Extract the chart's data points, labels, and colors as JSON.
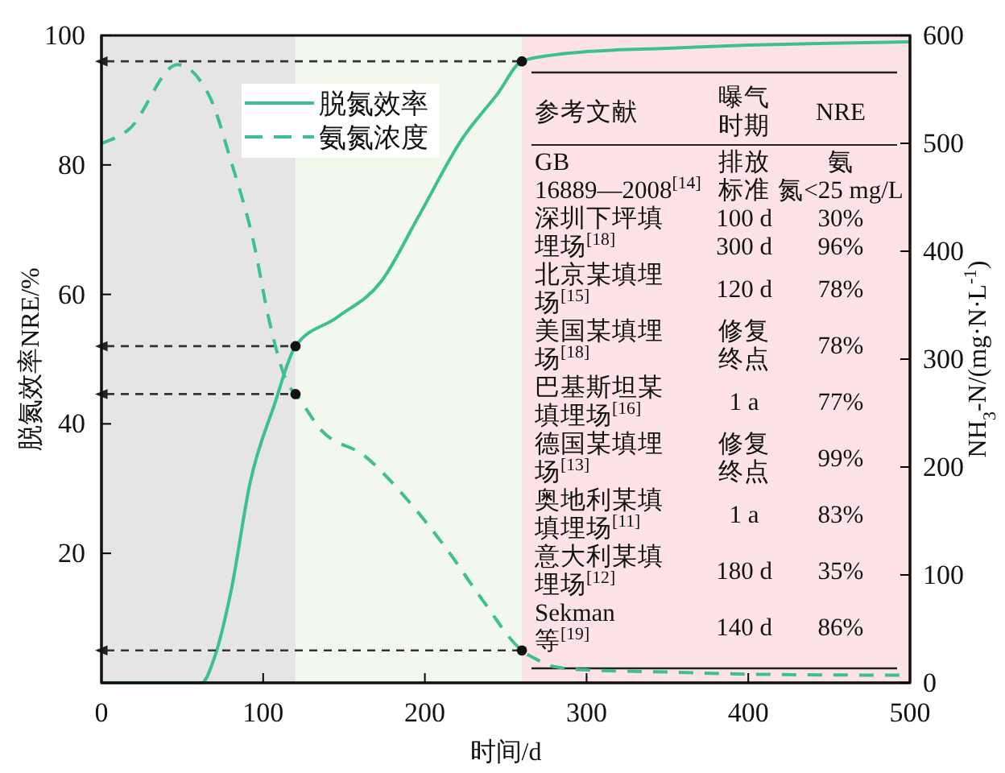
{
  "chart_data": {
    "type": "line",
    "xlabel": "时间/d",
    "ylabel": "脱氮效率NRE/%",
    "y2label": "NH$_{3}$-N/(mg·N·L$^{-1}$)",
    "xlim": [
      0,
      500
    ],
    "xticks": [
      0,
      100,
      200,
      300,
      400,
      500
    ],
    "ylim": [
      0,
      100
    ],
    "yticks": [
      20,
      40,
      60,
      80,
      100
    ],
    "y2lim": [
      0,
      600
    ],
    "y2ticks": [
      0,
      100,
      200,
      300,
      400,
      500,
      600
    ],
    "legend": "top left",
    "series": [
      {
        "name": "脱氮效率",
        "color": "#3dbf94",
        "line_style": "solid",
        "x": [
          0,
          62,
          70,
          80,
          92,
          107,
          120,
          146,
          173,
          196,
          223,
          245,
          260,
          280,
          300,
          350,
          400,
          450,
          500
        ],
        "values": [
          0,
          0,
          4,
          14,
          31,
          43,
          52,
          56.5,
          62,
          72,
          84,
          91,
          96,
          97,
          97.5,
          98,
          98.5,
          98.8,
          99
        ]
      },
      {
        "name": "氨氮浓度",
        "color": "#3dbf94",
        "line_style": "dashed",
        "axis": "y2",
        "x": [
          0,
          17,
          47,
          67,
          80,
          94,
          104,
          116,
          120,
          136,
          163,
          189,
          213,
          236,
          260,
          270,
          280,
          300,
          350,
          400,
          500
        ],
        "values": [
          500,
          513,
          573,
          543,
          484,
          409,
          334,
          275,
          268,
          234,
          210,
          170,
          125,
          76,
          30,
          21,
          15,
          12,
          10,
          8,
          7
        ]
      }
    ],
    "bands": [
      {
        "axis": "x",
        "from": 0,
        "to": 120,
        "color": "#e5e5e5"
      },
      {
        "axis": "x",
        "from": 120,
        "to": 260,
        "color": "#f2f8ec"
      },
      {
        "axis": "x",
        "from": 260,
        "to": 500,
        "color": "#fde3e6"
      }
    ],
    "ref_lines": [
      {
        "axis": "y",
        "value": 96,
        "line_style": "dashed",
        "color": "#333333"
      },
      {
        "axis": "y",
        "value": 52,
        "line_style": "dashed",
        "color": "#333333"
      },
      {
        "axis": "y",
        "value": 44.6,
        "line_style": "dashed",
        "color": "#333333"
      },
      {
        "axis": "y",
        "value": 5,
        "line_style": "dashed",
        "color": "#333333"
      }
    ],
    "annotations": [
      "参考文献",
      "曝气时期",
      "NRE",
      "GB 16889—2008$^{[14]}$",
      "排放标准",
      "氨氮<25 mg/L",
      "深圳下坪填埋场$^{[18]}$",
      "100 d 300 d",
      "30% 96%",
      "北京某填埋场$^{[15]}$",
      "120 d",
      "78%",
      "美国某填埋场$^{[18]}$",
      "修复终点",
      "78%",
      "巴基斯坦某填埋场$^{[16]}$",
      "1 a",
      "77%",
      "德国某填埋场$^{[13]}$",
      "修复终点",
      "99%",
      "奥地利某填填埋场$^{[11]}$",
      "1 a",
      "83%",
      "意大利某填埋场$^{[12]}$",
      "180 d",
      "35%",
      "Sekman等$^{[19]}$",
      "140 d",
      "86%"
    ]
  }
}
